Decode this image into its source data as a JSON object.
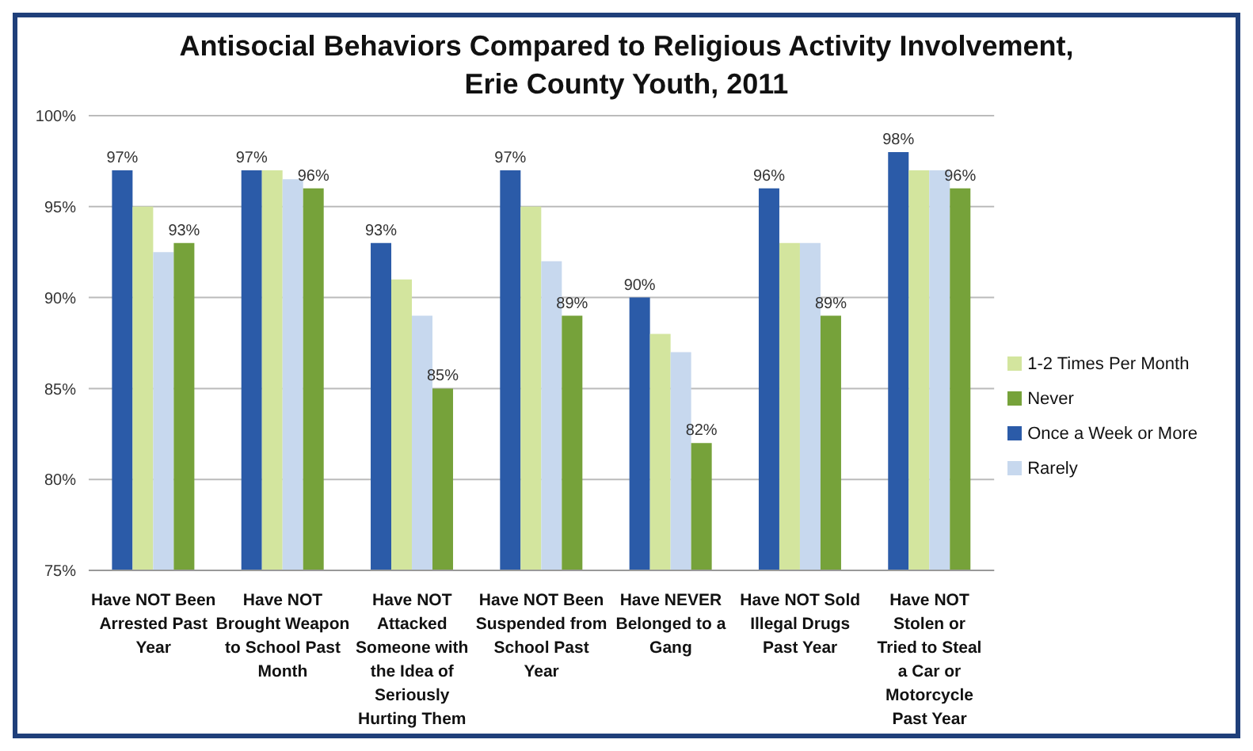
{
  "chart_data": {
    "type": "bar",
    "title": "Antisocial Behaviors Compared to Religious Activity Involvement, Erie County Youth, 2011",
    "categories": [
      "Have NOT Been Arrested Past Year",
      "Have NOT Brought Weapon to School Past Month",
      "Have NOT Attacked Someone with the Idea of Seriously Hurting Them",
      "Have NOT Been Suspended from School Past Year",
      "Have NEVER Belonged to a Gang",
      "Have NOT Sold Illegal Drugs Past Year",
      "Have NOT Stolen or Tried to Steal a Car or Motorcycle Past Year"
    ],
    "series": [
      {
        "name": "Once a Week or More",
        "color": "#2b5ba8",
        "values": [
          97,
          97,
          93,
          97,
          90,
          96,
          98
        ],
        "value_labels": [
          "97%",
          "97%",
          "93%",
          "97%",
          "90%",
          "96%",
          "98%"
        ]
      },
      {
        "name": "1-2 Times Per Month",
        "color": "#d3e59e",
        "values": [
          95,
          97,
          91,
          95,
          88,
          93,
          97
        ]
      },
      {
        "name": "Rarely",
        "color": "#c7d8ee",
        "values": [
          92.5,
          96.5,
          89,
          92,
          87,
          93,
          97
        ]
      },
      {
        "name": "Never",
        "color": "#76a23a",
        "values": [
          93,
          96,
          85,
          89,
          82,
          89,
          96
        ],
        "value_labels": [
          "93%",
          "96%",
          "85%",
          "89%",
          "82%",
          "89%",
          "96%"
        ]
      }
    ],
    "ylim": [
      75,
      100
    ],
    "yticks": [
      {
        "value": 75,
        "label": "75%"
      },
      {
        "value": 80,
        "label": "80%"
      },
      {
        "value": 85,
        "label": "85%"
      },
      {
        "value": 90,
        "label": "90%"
      },
      {
        "value": 95,
        "label": "95%"
      },
      {
        "value": 100,
        "label": "100%"
      }
    ],
    "grid": "y",
    "legend": "right"
  }
}
